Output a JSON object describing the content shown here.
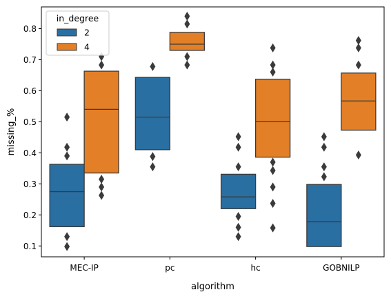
{
  "chart_data": {
    "type": "boxen",
    "xlabel": "algorithm",
    "ylabel": "missing_%",
    "ylim": [
      0.065,
      0.87
    ],
    "yticks": [
      0.1,
      0.2,
      0.3,
      0.4,
      0.5,
      0.6,
      0.7,
      0.8
    ],
    "categories": [
      "MEC-IP",
      "pc",
      "hc",
      "GOBNILP"
    ],
    "legend": {
      "title": "in_degree",
      "position": "top-left"
    },
    "colors": {
      "2": "#2a6fa2",
      "4": "#e37f27",
      "edge": "#3a3a3a",
      "outlier": "#3a3a3a"
    },
    "series": [
      {
        "name": "2",
        "groups": [
          {
            "box": [
              0.162,
              0.363
            ],
            "median": 0.275,
            "outliers": [
              0.515,
              0.418,
              0.39,
              0.13,
              0.098
            ]
          },
          {
            "box": [
              0.41,
              0.643
            ],
            "median": 0.515,
            "outliers": [
              0.678,
              0.388,
              0.355
            ]
          },
          {
            "box": [
              0.22,
              0.331
            ],
            "median": 0.258,
            "outliers": [
              0.452,
              0.418,
              0.355,
              0.195,
              0.16,
              0.13
            ]
          },
          {
            "box": [
              0.098,
              0.298
            ],
            "median": 0.178,
            "outliers": [
              0.452,
              0.418,
              0.355,
              0.323
            ]
          }
        ]
      },
      {
        "name": "4",
        "groups": [
          {
            "box": [
              0.335,
              0.663
            ],
            "median": 0.54,
            "outliers": [
              0.71,
              0.683,
              0.315,
              0.29,
              0.263
            ]
          },
          {
            "box": [
              0.73,
              0.788
            ],
            "median": 0.75,
            "outliers": [
              0.84,
              0.815,
              0.71,
              0.683
            ]
          },
          {
            "box": [
              0.386,
              0.637
            ],
            "median": 0.5,
            "outliers": [
              0.738,
              0.683,
              0.66,
              0.37,
              0.343,
              0.29,
              0.237,
              0.158
            ]
          },
          {
            "box": [
              0.473,
              0.657
            ],
            "median": 0.567,
            "outliers": [
              0.762,
              0.738,
              0.683,
              0.393
            ]
          }
        ]
      }
    ]
  }
}
